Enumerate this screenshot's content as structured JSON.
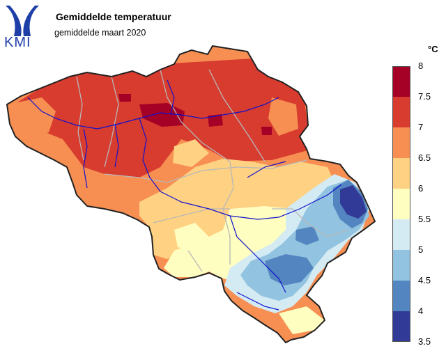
{
  "header": {
    "logo_text": "KMI",
    "title": "Gemiddelde temperatuur",
    "subtitle": "gemiddelde maart 2020"
  },
  "legend": {
    "unit": "°C",
    "labels": [
      "8",
      "7.5",
      "7",
      "6.5",
      "6",
      "5.5",
      "5",
      "4.5",
      "4",
      "3.5"
    ],
    "classes": [
      {
        "from": 7.5,
        "to": 8.0,
        "color": "#a50026"
      },
      {
        "from": 7.0,
        "to": 7.5,
        "color": "#d73c2f"
      },
      {
        "from": 6.5,
        "to": 7.0,
        "color": "#f78f52"
      },
      {
        "from": 6.0,
        "to": 6.5,
        "color": "#fed183"
      },
      {
        "from": 5.5,
        "to": 6.0,
        "color": "#fefec0"
      },
      {
        "from": 5.0,
        "to": 5.5,
        "color": "#d4ebf3"
      },
      {
        "from": 4.5,
        "to": 5.0,
        "color": "#92c3e0"
      },
      {
        "from": 4.0,
        "to": 4.5,
        "color": "#5385c0"
      },
      {
        "from": 3.5,
        "to": 4.0,
        "color": "#323a98"
      }
    ]
  },
  "colors": {
    "border": "#222222",
    "rivers": "#1111cc",
    "provinces": "#b8b8b8"
  }
}
